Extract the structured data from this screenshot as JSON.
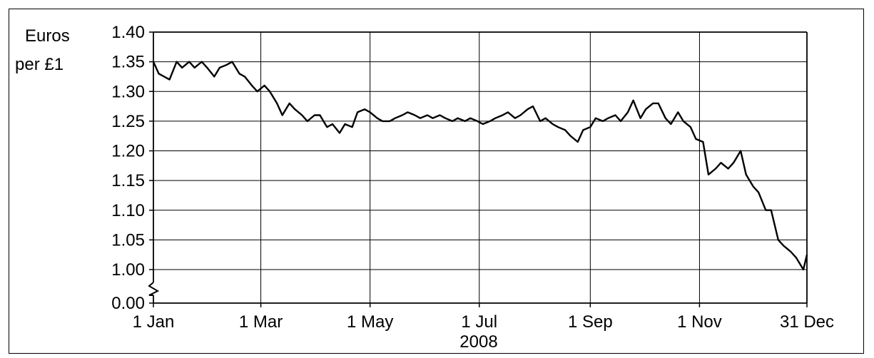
{
  "chart_data": {
    "type": "line",
    "ylabel": [
      "Euros",
      "per £1"
    ],
    "xlabel": "2008",
    "x_tick_labels": [
      "1 Jan",
      "1 Mar",
      "1 May",
      "1 Jul",
      "1 Sep",
      "1 Nov",
      "31 Dec"
    ],
    "x_tick_dates": [
      "2008-01-01",
      "2008-03-01",
      "2008-05-01",
      "2008-07-01",
      "2008-09-01",
      "2008-11-01",
      "2008-12-31"
    ],
    "y_tick_labels": [
      "0.00",
      "1.00",
      "1.05",
      "1.10",
      "1.15",
      "1.20",
      "1.25",
      "1.30",
      "1.35",
      "1.40"
    ],
    "y_axis_break": {
      "from": 0.0,
      "to": 1.0
    },
    "xlim": [
      "2008-01-01",
      "2008-12-31"
    ],
    "ylim": [
      0.0,
      1.4
    ],
    "grid": true,
    "line_color": "#000000",
    "series": [
      {
        "x": [
          "2008-01-01",
          "2008-01-04",
          "2008-01-10",
          "2008-01-14",
          "2008-01-17",
          "2008-01-21",
          "2008-01-24",
          "2008-01-28",
          "2008-01-31",
          "2008-02-04",
          "2008-02-07",
          "2008-02-11",
          "2008-02-14",
          "2008-02-18",
          "2008-02-21",
          "2008-02-25",
          "2008-02-28",
          "2008-03-03",
          "2008-03-06",
          "2008-03-10",
          "2008-03-13",
          "2008-03-17",
          "2008-03-20",
          "2008-03-24",
          "2008-03-27",
          "2008-03-31",
          "2008-04-03",
          "2008-04-07",
          "2008-04-10",
          "2008-04-14",
          "2008-04-17",
          "2008-04-21",
          "2008-04-24",
          "2008-04-28",
          "2008-05-01",
          "2008-05-05",
          "2008-05-08",
          "2008-05-12",
          "2008-05-15",
          "2008-05-19",
          "2008-05-22",
          "2008-05-26",
          "2008-05-29",
          "2008-06-02",
          "2008-06-05",
          "2008-06-09",
          "2008-06-12",
          "2008-06-16",
          "2008-06-19",
          "2008-06-23",
          "2008-06-26",
          "2008-06-30",
          "2008-07-03",
          "2008-07-07",
          "2008-07-10",
          "2008-07-14",
          "2008-07-17",
          "2008-07-21",
          "2008-07-24",
          "2008-07-28",
          "2008-07-31",
          "2008-08-04",
          "2008-08-07",
          "2008-08-11",
          "2008-08-14",
          "2008-08-18",
          "2008-08-21",
          "2008-08-25",
          "2008-08-28",
          "2008-09-01",
          "2008-09-04",
          "2008-09-08",
          "2008-09-11",
          "2008-09-15",
          "2008-09-18",
          "2008-09-22",
          "2008-09-25",
          "2008-09-29",
          "2008-10-02",
          "2008-10-06",
          "2008-10-09",
          "2008-10-13",
          "2008-10-16",
          "2008-10-20",
          "2008-10-23",
          "2008-10-27",
          "2008-10-30",
          "2008-11-03",
          "2008-11-06",
          "2008-11-10",
          "2008-11-13",
          "2008-11-17",
          "2008-11-20",
          "2008-11-24",
          "2008-11-27",
          "2008-12-01",
          "2008-12-04",
          "2008-12-08",
          "2008-12-11",
          "2008-12-15",
          "2008-12-18",
          "2008-12-22",
          "2008-12-25",
          "2008-12-29",
          "2008-12-31"
        ],
        "y": [
          1.35,
          1.33,
          1.32,
          1.35,
          1.34,
          1.35,
          1.34,
          1.35,
          1.34,
          1.325,
          1.34,
          1.345,
          1.35,
          1.33,
          1.325,
          1.31,
          1.3,
          1.31,
          1.3,
          1.28,
          1.26,
          1.28,
          1.27,
          1.26,
          1.25,
          1.26,
          1.26,
          1.24,
          1.245,
          1.23,
          1.245,
          1.24,
          1.265,
          1.27,
          1.265,
          1.255,
          1.25,
          1.25,
          1.255,
          1.26,
          1.265,
          1.26,
          1.255,
          1.26,
          1.255,
          1.26,
          1.255,
          1.25,
          1.255,
          1.25,
          1.255,
          1.25,
          1.245,
          1.25,
          1.255,
          1.26,
          1.265,
          1.255,
          1.26,
          1.27,
          1.275,
          1.25,
          1.255,
          1.245,
          1.24,
          1.235,
          1.225,
          1.215,
          1.235,
          1.24,
          1.255,
          1.25,
          1.255,
          1.26,
          1.25,
          1.265,
          1.285,
          1.255,
          1.27,
          1.28,
          1.28,
          1.255,
          1.245,
          1.265,
          1.25,
          1.24,
          1.22,
          1.215,
          1.16,
          1.17,
          1.18,
          1.17,
          1.18,
          1.2,
          1.16,
          1.14,
          1.13,
          1.1,
          1.1,
          1.05,
          1.04,
          1.03,
          1.02,
          1.0,
          1.025
        ]
      }
    ]
  }
}
